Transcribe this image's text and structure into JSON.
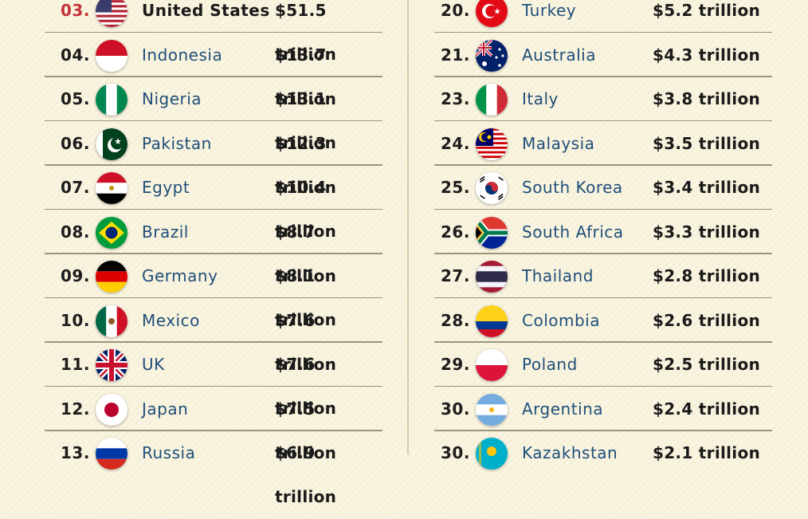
{
  "left": [
    {
      "rank": "03.",
      "country": "United States",
      "value": "$51.5 trillion",
      "flag": "usa-flag-icon",
      "highlight": true
    },
    {
      "rank": "04.",
      "country": "Indonesia",
      "value": "$13.7 trillion",
      "flag": "indonesia-flag-icon"
    },
    {
      "rank": "05.",
      "country": "Nigeria",
      "value": "$13.1 trillion",
      "flag": "nigeria-flag-icon"
    },
    {
      "rank": "06.",
      "country": "Pakistan",
      "value": "$12.3 trillion",
      "flag": "pakistan-flag-icon"
    },
    {
      "rank": "07.",
      "country": "Egypt",
      "value": "$10.4 trillion",
      "flag": "egypt-flag-icon"
    },
    {
      "rank": "08.",
      "country": "Brazil",
      "value": "$8.7 trillion",
      "flag": "brazil-flag-icon"
    },
    {
      "rank": "09.",
      "country": "Germany",
      "value": "$8.1 trillion",
      "flag": "germany-flag-icon"
    },
    {
      "rank": "10.",
      "country": "Mexico",
      "value": "$7.6 trillion",
      "flag": "mexico-flag-icon"
    },
    {
      "rank": "11.",
      "country": "UK",
      "value": "$7.6 trillion",
      "flag": "uk-flag-icon"
    },
    {
      "rank": "12.",
      "country": "Japan",
      "value": "$7.5 trillion",
      "flag": "japan-flag-icon"
    },
    {
      "rank": "13.",
      "country": "Russia",
      "value": "$6.9 trillion",
      "flag": "russia-flag-icon"
    }
  ],
  "right": [
    {
      "rank": "20.",
      "country": "Turkey",
      "value": "$5.2 trillion",
      "flag": "turkey-flag-icon"
    },
    {
      "rank": "21.",
      "country": "Australia",
      "value": "$4.3 trillion",
      "flag": "australia-flag-icon"
    },
    {
      "rank": "23.",
      "country": "Italy",
      "value": "$3.8 trillion",
      "flag": "italy-flag-icon"
    },
    {
      "rank": "24.",
      "country": "Malaysia",
      "value": "$3.5 trillion",
      "flag": "malaysia-flag-icon"
    },
    {
      "rank": "25.",
      "country": "South Korea",
      "value": "$3.4 trillion",
      "flag": "south-korea-flag-icon"
    },
    {
      "rank": "26.",
      "country": "South Africa",
      "value": "$3.3 trillion",
      "flag": "south-africa-flag-icon"
    },
    {
      "rank": "27.",
      "country": "Thailand",
      "value": "$2.8 trillion",
      "flag": "thailand-flag-icon"
    },
    {
      "rank": "28.",
      "country": "Colombia",
      "value": "$2.6 trillion",
      "flag": "colombia-flag-icon"
    },
    {
      "rank": "29.",
      "country": "Poland",
      "value": "$2.5 trillion",
      "flag": "poland-flag-icon"
    },
    {
      "rank": "30.",
      "country": "Argentina",
      "value": "$2.4 trillion",
      "flag": "argentina-flag-icon"
    },
    {
      "rank": "30.",
      "country": "Kazakhstan",
      "value": "$2.1 trillion",
      "flag": "kazakhstan-flag-icon"
    }
  ],
  "colors": {
    "background": "#f7f1d9",
    "highlight_rank": "#c4323a",
    "country_text": "#1f4e7a",
    "separator": "#9a9478"
  }
}
